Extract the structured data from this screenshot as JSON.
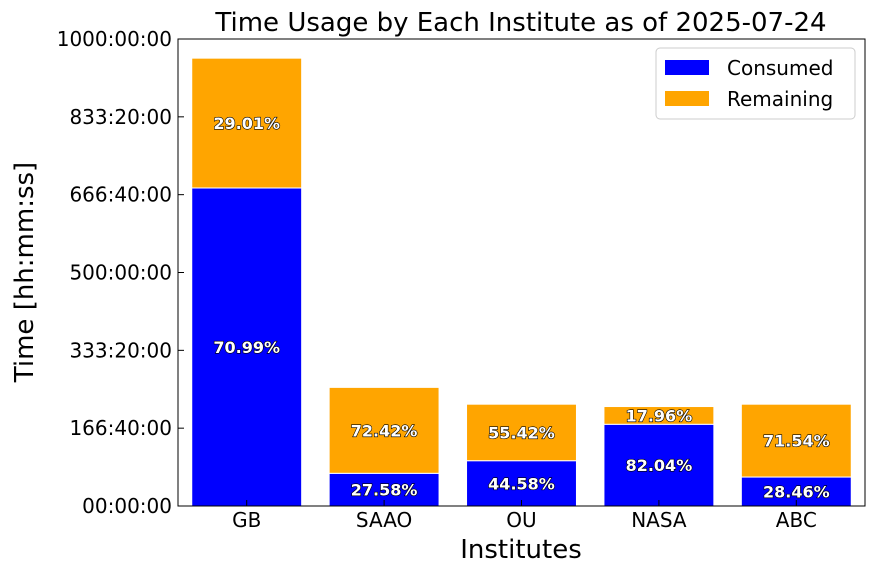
{
  "chart_data": {
    "type": "bar",
    "stacked": true,
    "title": "Time Usage by Each Institute as of 2025-07-24",
    "xlabel": "Institutes",
    "ylabel": "Time [hh:mm:ss]",
    "categories": [
      "GB",
      "SAAO",
      "OU",
      "NASA",
      "ABC"
    ],
    "series": [
      {
        "name": "Consumed",
        "color": "#0000ff",
        "values_hours": [
          681,
          70,
          97,
          175,
          62
        ],
        "labels": [
          "70.99%",
          "27.58%",
          "44.58%",
          "82.04%",
          "28.46%"
        ]
      },
      {
        "name": "Remaining",
        "color": "#ffa500",
        "values_hours": [
          278,
          184,
          121,
          38,
          156
        ],
        "labels": [
          "29.01%",
          "72.42%",
          "55.42%",
          "17.96%",
          "71.54%"
        ]
      }
    ],
    "ylim_hours": [
      0,
      1000
    ],
    "yticks_hours": [
      0,
      166.6667,
      333.3333,
      500,
      666.6667,
      833.3333,
      1000
    ],
    "yticklabels": [
      "00:00:00",
      "166:40:00",
      "333:20:00",
      "500:00:00",
      "666:40:00",
      "833:20:00",
      "1000:00:00"
    ],
    "legend_position": "top-right",
    "grid": false
  }
}
